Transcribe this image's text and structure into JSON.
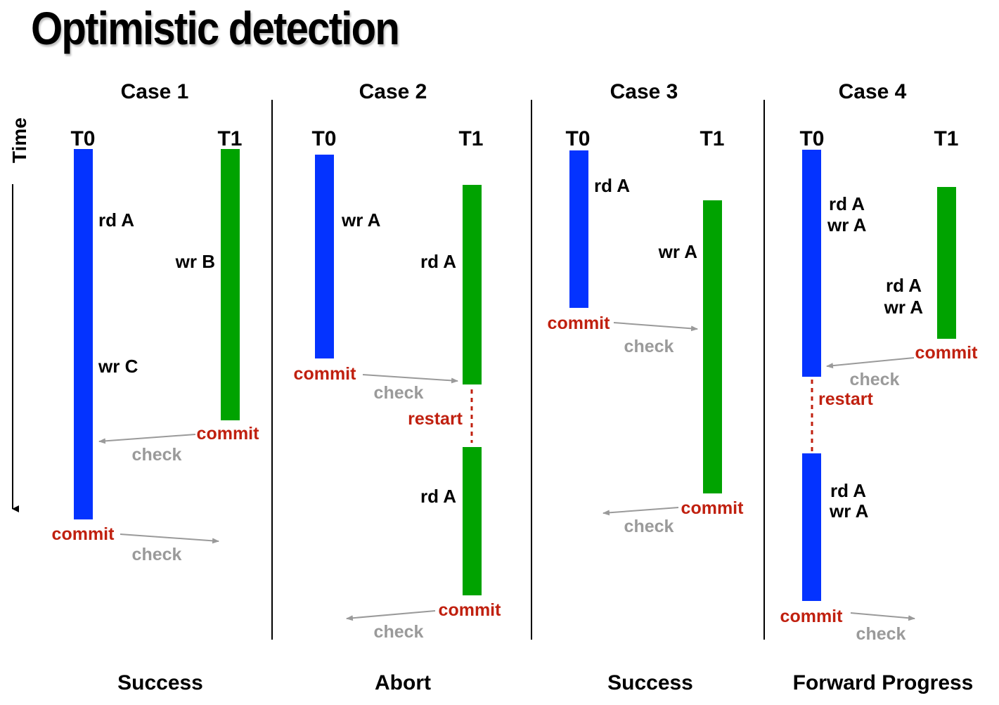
{
  "title": "Optimistic detection",
  "time_label": "Time",
  "colors": {
    "t0": "#0433ff",
    "t1": "#00a300",
    "commit": "#c0200f",
    "check": "#9a9a9a"
  },
  "cases": [
    {
      "heading": "Case 1",
      "outcome": "Success",
      "t0": "T0",
      "t1": "T1",
      "ops": [
        "rd A",
        "wr C",
        "wr B"
      ],
      "commits": [
        "commit",
        "commit"
      ],
      "checks": [
        "check",
        "check"
      ]
    },
    {
      "heading": "Case 2",
      "outcome": "Abort",
      "t0": "T0",
      "t1": "T1",
      "ops": [
        "wr A",
        "rd A",
        "rd A"
      ],
      "commits": [
        "commit",
        "commit"
      ],
      "checks": [
        "check",
        "check"
      ],
      "restart": "restart"
    },
    {
      "heading": "Case 3",
      "outcome": "Success",
      "t0": "T0",
      "t1": "T1",
      "ops": [
        "rd A",
        "wr A"
      ],
      "commits": [
        "commit",
        "commit"
      ],
      "checks": [
        "check",
        "check"
      ]
    },
    {
      "heading": "Case 4",
      "outcome": "Forward Progress",
      "t0": "T0",
      "t1": "T1",
      "ops": [
        "rd A",
        "wr A",
        "rd A",
        "wr A",
        "rd A",
        "wr A"
      ],
      "commits": [
        "commit",
        "commit"
      ],
      "checks": [
        "check",
        "check"
      ],
      "restart": "restart"
    }
  ]
}
